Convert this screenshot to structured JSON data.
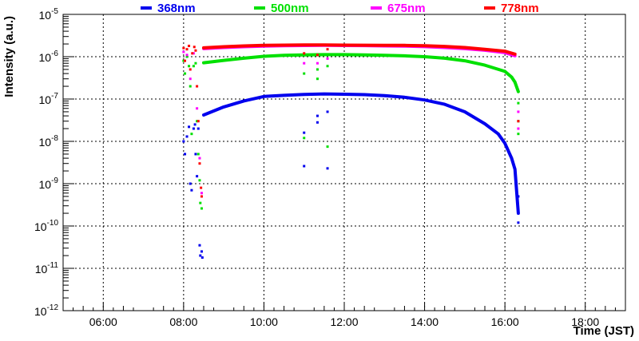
{
  "chart_data": {
    "type": "scatter",
    "title": "",
    "xlabel": "Time (JST)",
    "ylabel": "Intensity (a.u.)",
    "xlim": [
      "05:00",
      "19:00"
    ],
    "ylim": [
      1e-12,
      1e-05
    ],
    "y_scale": "log",
    "grid": true,
    "legend_position": "top",
    "x_ticks": [
      "06:00",
      "08:00",
      "10:00",
      "12:00",
      "14:00",
      "16:00",
      "18:00"
    ],
    "y_ticks": [
      {
        "base": "10",
        "exp": "-12",
        "value": 1e-12
      },
      {
        "base": "10",
        "exp": "-11",
        "value": 1e-11
      },
      {
        "base": "10",
        "exp": "-10",
        "value": 1e-10
      },
      {
        "base": "10",
        "exp": "-9",
        "value": 1e-09
      },
      {
        "base": "10",
        "exp": "-8",
        "value": 1e-08
      },
      {
        "base": "10",
        "exp": "-7",
        "value": 1e-07
      },
      {
        "base": "10",
        "exp": "-6",
        "value": 1e-06
      },
      {
        "base": "10",
        "exp": "-5",
        "value": 1e-05
      }
    ],
    "series": [
      {
        "name": "368nm",
        "color": "#0000ee",
        "x": [
          "08:30",
          "09:00",
          "09:30",
          "10:00",
          "10:30",
          "11:00",
          "11:30",
          "12:00",
          "12:30",
          "13:00",
          "13:30",
          "14:00",
          "14:30",
          "15:00",
          "15:30",
          "15:50",
          "16:00",
          "16:10",
          "16:15",
          "16:20"
        ],
        "y": [
          4.2e-08,
          6.5e-08,
          9e-08,
          1.15e-07,
          1.22e-07,
          1.28e-07,
          1.32e-07,
          1.3e-07,
          1.27e-07,
          1.2e-07,
          1.1e-07,
          9.5e-08,
          7.5e-08,
          5e-08,
          2.6e-08,
          1.5e-08,
          9e-09,
          4e-09,
          2.2e-09,
          2e-10
        ],
        "scatter_x": [
          "08:00",
          "08:02",
          "08:05",
          "08:08",
          "08:10",
          "08:12",
          "08:15",
          "08:17",
          "08:18",
          "08:20",
          "08:22",
          "08:24",
          "08:25",
          "08:27",
          "08:28",
          "11:00",
          "11:00",
          "11:20",
          "11:20",
          "11:35",
          "11:35",
          "16:20",
          "16:20",
          "16:20"
        ],
        "scatter_y": [
          1e-08,
          5e-09,
          1.3e-08,
          2.2e-08,
          1e-09,
          7e-10,
          2e-08,
          2.5e-08,
          5e-09,
          1.5e-09,
          2e-08,
          3.5e-11,
          2e-11,
          2.5e-11,
          1.8e-11,
          1.6e-08,
          2.6e-09,
          2.8e-08,
          4e-08,
          2.3e-09,
          5e-08,
          5e-10,
          2e-10,
          1.2e-10
        ]
      },
      {
        "name": "500nm",
        "color": "#00e000",
        "x": [
          "08:30",
          "09:00",
          "09:30",
          "10:00",
          "10:30",
          "11:00",
          "11:30",
          "12:00",
          "12:30",
          "13:00",
          "13:30",
          "14:00",
          "14:30",
          "15:00",
          "15:30",
          "16:00",
          "16:10",
          "16:15",
          "16:20"
        ],
        "y": [
          7.2e-07,
          8.2e-07,
          9.2e-07,
          1.02e-06,
          1.08e-06,
          1.1e-06,
          1.12e-06,
          1.12e-06,
          1.1e-06,
          1.08e-06,
          1.05e-06,
          1e-06,
          9.2e-07,
          8e-07,
          6.3e-07,
          4.5e-07,
          3.3e-07,
          2.5e-07,
          1.5e-07
        ],
        "scatter_x": [
          "08:00",
          "08:02",
          "08:05",
          "08:08",
          "08:10",
          "08:12",
          "08:15",
          "08:18",
          "08:20",
          "08:22",
          "08:24",
          "08:25",
          "08:27",
          "11:00",
          "11:00",
          "11:20",
          "11:20",
          "11:35",
          "11:35",
          "16:20",
          "16:20",
          "16:20"
        ],
        "scatter_y": [
          8e-07,
          4e-07,
          1e-06,
          6e-07,
          2e-07,
          1.5e-08,
          6e-07,
          7e-07,
          3e-08,
          5e-09,
          1.2e-09,
          3.5e-10,
          2.6e-10,
          4e-07,
          1.2e-08,
          5e-07,
          3e-07,
          6e-07,
          7.5e-09,
          8e-08,
          3e-08,
          1.5e-08
        ]
      },
      {
        "name": "675nm",
        "color": "#ff00ff",
        "x": [
          "08:30",
          "09:00",
          "09:30",
          "10:00",
          "10:30",
          "11:00",
          "11:30",
          "12:00",
          "12:30",
          "13:00",
          "13:30",
          "14:00",
          "14:30",
          "15:00",
          "15:30",
          "16:00",
          "16:15"
        ],
        "y": [
          1.55e-06,
          1.65e-06,
          1.72e-06,
          1.78e-06,
          1.82e-06,
          1.84e-06,
          1.85e-06,
          1.84e-06,
          1.83e-06,
          1.8e-06,
          1.78e-06,
          1.73e-06,
          1.65e-06,
          1.55e-06,
          1.42e-06,
          1.25e-06,
          1.05e-06
        ],
        "scatter_x": [
          "08:00",
          "08:05",
          "08:10",
          "08:15",
          "08:20",
          "08:24",
          "08:27",
          "11:00",
          "11:20",
          "11:35",
          "16:20",
          "16:20"
        ],
        "scatter_y": [
          1.3e-06,
          1.1e-06,
          3e-07,
          1.2e-06,
          6e-08,
          4e-09,
          6e-10,
          7e-07,
          7e-07,
          9e-07,
          5e-08,
          2e-08
        ]
      },
      {
        "name": "778nm",
        "color": "#ff0000",
        "x": [
          "08:30",
          "09:00",
          "09:30",
          "10:00",
          "10:30",
          "11:00",
          "11:30",
          "12:00",
          "12:30",
          "13:00",
          "13:30",
          "14:00",
          "14:30",
          "15:00",
          "15:30",
          "16:00",
          "16:15"
        ],
        "y": [
          1.62e-06,
          1.72e-06,
          1.8e-06,
          1.85e-06,
          1.88e-06,
          1.9e-06,
          1.9e-06,
          1.88e-06,
          1.87e-06,
          1.86e-06,
          1.85e-06,
          1.82e-06,
          1.75e-06,
          1.65e-06,
          1.5e-06,
          1.35e-06,
          1.15e-06
        ],
        "scatter_x": [
          "08:00",
          "08:02",
          "08:05",
          "08:08",
          "08:10",
          "08:13",
          "08:16",
          "08:18",
          "08:20",
          "08:22",
          "08:24",
          "08:26",
          "08:27",
          "11:00",
          "11:20",
          "11:35",
          "16:20"
        ],
        "scatter_y": [
          1.6e-06,
          8e-07,
          1.5e-06,
          1.8e-06,
          5e-07,
          1.2e-06,
          1.7e-06,
          1.4e-06,
          2e-07,
          3e-08,
          3e-09,
          8e-10,
          5e-10,
          1.2e-06,
          1.1e-06,
          1.5e-06,
          3e-08
        ]
      }
    ]
  }
}
